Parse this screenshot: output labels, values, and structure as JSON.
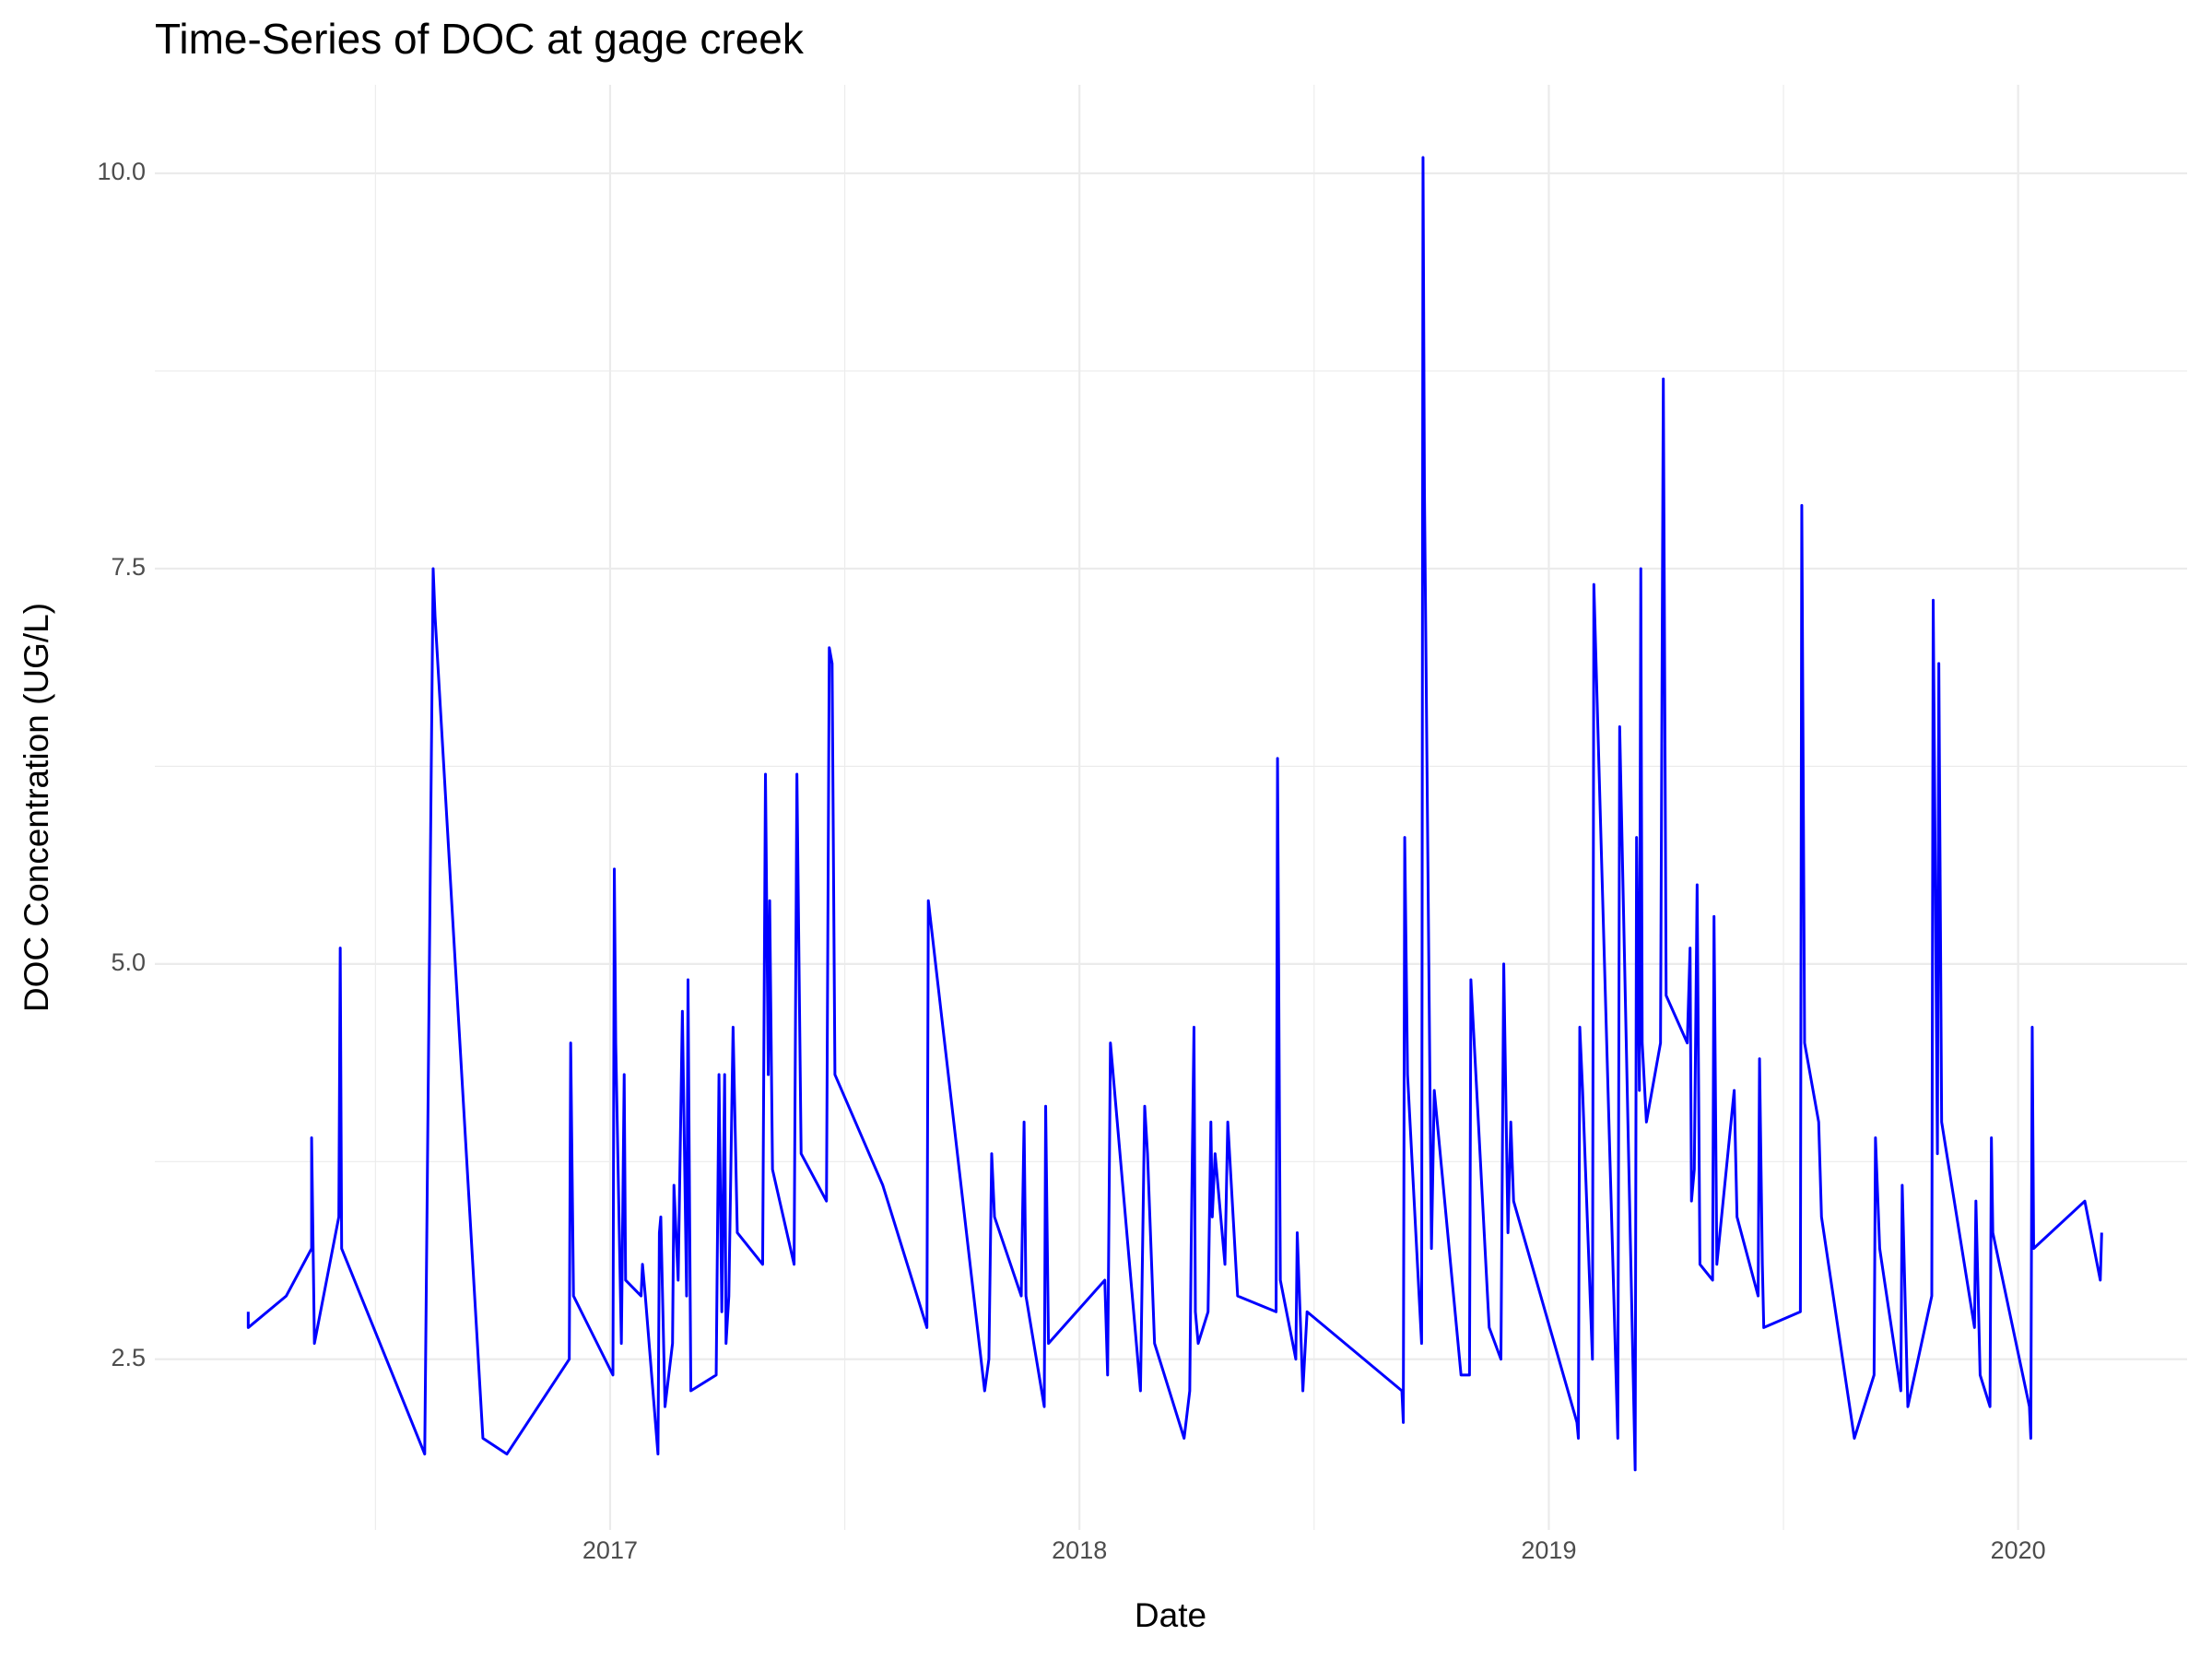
{
  "chart_data": {
    "type": "line",
    "title": "Time-Series of DOC at gage creek",
    "x_label": "Date",
    "y_label": "DOC Concentration (UG/L)",
    "color": "#0000ff",
    "grid": true,
    "xlim": [
      2016.03,
      2020.36
    ],
    "ylim": [
      1.42,
      10.56
    ],
    "xticks": [
      2017,
      2018,
      2019,
      2020
    ],
    "yticks": [
      {
        "value": 2.5,
        "label": "2.5"
      },
      {
        "value": 5,
        "label": "5.0"
      },
      {
        "value": 7.5,
        "label": "7.5"
      },
      {
        "value": 10,
        "label": "10.0"
      }
    ],
    "x": [
      2016.229,
      2016.229,
      2016.31,
      2016.364,
      2016.364,
      2016.37,
      2016.422,
      2016.425,
      2016.428,
      2016.605,
      2016.623,
      2016.627,
      2016.729,
      2016.78,
      2016.913,
      2016.916,
      2016.922,
      2017.006,
      2017.009,
      2017.012,
      2017.024,
      2017.03,
      2017.033,
      2017.066,
      2017.069,
      2017.075,
      2017.102,
      2017.105,
      2017.108,
      2017.117,
      2017.133,
      2017.136,
      2017.145,
      2017.154,
      2017.163,
      2017.166,
      2017.172,
      2017.226,
      2017.232,
      2017.238,
      2017.244,
      2017.247,
      2017.253,
      2017.262,
      2017.271,
      2017.325,
      2017.331,
      2017.337,
      2017.34,
      2017.346,
      2017.392,
      2017.398,
      2017.407,
      2017.461,
      2017.467,
      2017.473,
      2017.479,
      2017.581,
      2017.675,
      2017.678,
      2017.798,
      2017.807,
      2017.813,
      2017.819,
      2017.876,
      2017.882,
      2017.886,
      2017.925,
      2017.928,
      2017.934,
      2018.054,
      2018.06,
      2018.066,
      2018.13,
      2018.139,
      2018.145,
      2018.16,
      2018.223,
      2018.235,
      2018.238,
      2018.244,
      2018.247,
      2018.253,
      2018.274,
      2018.28,
      2018.283,
      2018.289,
      2018.31,
      2018.316,
      2018.337,
      2018.419,
      2018.422,
      2018.428,
      2018.461,
      2018.464,
      2018.476,
      2018.485,
      2018.687,
      2018.69,
      2018.693,
      2018.699,
      2018.729,
      2018.732,
      2018.735,
      2018.75,
      2018.756,
      2018.813,
      2018.831,
      2018.834,
      2018.873,
      2018.898,
      2018.904,
      2018.913,
      2018.919,
      2018.925,
      2019.06,
      2019.063,
      2019.066,
      2019.072,
      2019.093,
      2019.096,
      2019.147,
      2019.151,
      2019.184,
      2019.187,
      2019.193,
      2019.196,
      2019.199,
      2019.208,
      2019.238,
      2019.244,
      2019.25,
      2019.295,
      2019.301,
      2019.304,
      2019.31,
      2019.316,
      2019.322,
      2019.349,
      2019.352,
      2019.358,
      2019.395,
      2019.401,
      2019.446,
      2019.449,
      2019.455,
      2019.458,
      2019.536,
      2019.539,
      2019.545,
      2019.575,
      2019.581,
      2019.651,
      2019.693,
      2019.696,
      2019.705,
      2019.75,
      2019.753,
      2019.765,
      2019.816,
      2019.819,
      2019.828,
      2019.831,
      2019.837,
      2019.907,
      2019.91,
      2019.919,
      2019.94,
      2019.943,
      2019.946,
      2020.024,
      2020.027,
      2020.03,
      2020.033,
      2020.142,
      2020.175,
      2020.178
    ],
    "values": [
      2.8,
      2.7,
      2.9,
      3.2,
      3.9,
      2.6,
      3.4,
      5.1,
      3.2,
      1.9,
      7.5,
      7.2,
      2.0,
      1.9,
      2.5,
      4.5,
      2.9,
      2.4,
      5.6,
      4.5,
      2.6,
      4.3,
      3.0,
      2.9,
      3.1,
      2.9,
      1.9,
      3.3,
      3.4,
      2.2,
      2.6,
      3.6,
      3.0,
      4.7,
      2.9,
      4.9,
      2.3,
      2.4,
      4.3,
      2.8,
      4.3,
      2.6,
      2.9,
      4.6,
      3.3,
      3.1,
      6.2,
      4.3,
      5.4,
      3.7,
      3.1,
      6.2,
      3.8,
      3.5,
      7.0,
      6.9,
      4.3,
      3.6,
      2.7,
      5.4,
      2.3,
      2.5,
      3.8,
      3.4,
      2.9,
      4.0,
      2.9,
      2.2,
      4.1,
      2.6,
      3.0,
      2.4,
      4.5,
      2.3,
      4.1,
      3.8,
      2.6,
      2.0,
      2.3,
      3.2,
      4.6,
      2.8,
      2.6,
      2.8,
      4.0,
      3.4,
      3.8,
      3.1,
      4.0,
      2.9,
      2.8,
      6.3,
      3.0,
      2.5,
      3.3,
      2.3,
      2.8,
      2.3,
      2.1,
      5.8,
      4.3,
      2.6,
      10.1,
      8.0,
      3.2,
      4.2,
      2.4,
      2.4,
      4.9,
      2.7,
      2.5,
      5.0,
      3.3,
      4.0,
      3.5,
      2.1,
      2.0,
      4.6,
      4.2,
      2.5,
      7.4,
      2.0,
      6.5,
      1.8,
      5.8,
      4.2,
      7.5,
      4.5,
      4.0,
      4.5,
      8.7,
      4.8,
      4.5,
      5.1,
      3.5,
      3.7,
      5.5,
      3.1,
      3.0,
      5.3,
      3.1,
      4.2,
      3.4,
      2.9,
      4.4,
      3.1,
      2.7,
      2.8,
      7.9,
      4.5,
      4.0,
      3.4,
      2.0,
      2.4,
      3.9,
      3.2,
      2.3,
      3.6,
      2.2,
      2.9,
      7.3,
      3.8,
      6.9,
      4.0,
      2.7,
      3.5,
      2.4,
      2.2,
      3.9,
      3.3,
      2.2,
      2.0,
      4.6,
      3.2,
      3.5,
      3.0,
      3.3
    ]
  }
}
